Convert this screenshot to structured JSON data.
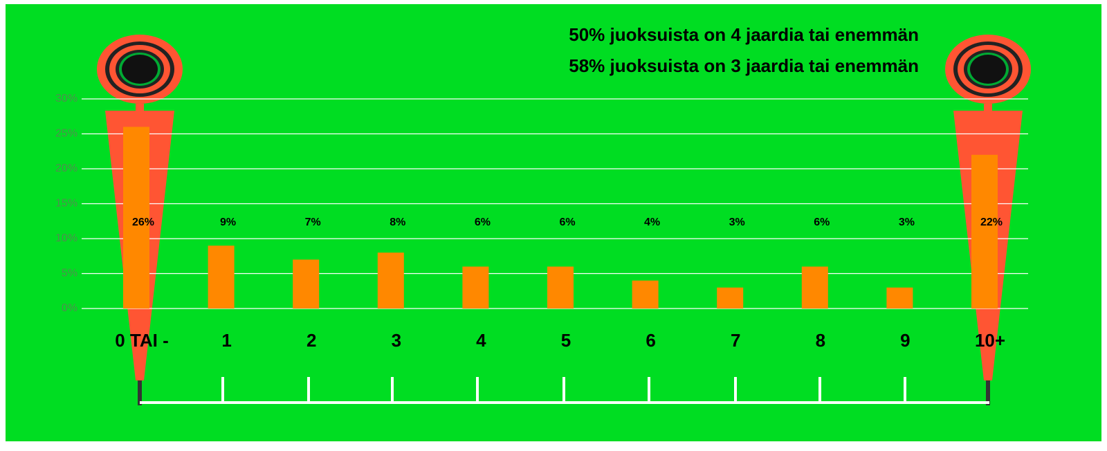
{
  "chart_data": {
    "type": "bar",
    "annotations": [
      "50% juoksuista on 4 jaardia tai enemmän",
      "58% juoksuista on 3 jaardia tai enemmän"
    ],
    "categories": [
      "0 TAI -",
      "1",
      "2",
      "3",
      "4",
      "5",
      "6",
      "7",
      "8",
      "9",
      "10+"
    ],
    "values": [
      26,
      9,
      7,
      8,
      6,
      6,
      4,
      3,
      6,
      3,
      22
    ],
    "value_labels": [
      "26%",
      "9%",
      "7%",
      "8%",
      "6%",
      "6%",
      "4%",
      "3%",
      "6%",
      "3%",
      "22%"
    ],
    "color": "#ff8800",
    "ylim": [
      0,
      30
    ],
    "yticks": [
      {
        "value": 0,
        "label": "0%"
      },
      {
        "value": 5,
        "label": "5%"
      },
      {
        "value": 10,
        "label": "10%"
      },
      {
        "value": 15,
        "label": "15%"
      },
      {
        "value": 20,
        "label": "20%"
      },
      {
        "value": 25,
        "label": "25%"
      },
      {
        "value": 30,
        "label": "30%"
      }
    ],
    "grid": true
  }
}
